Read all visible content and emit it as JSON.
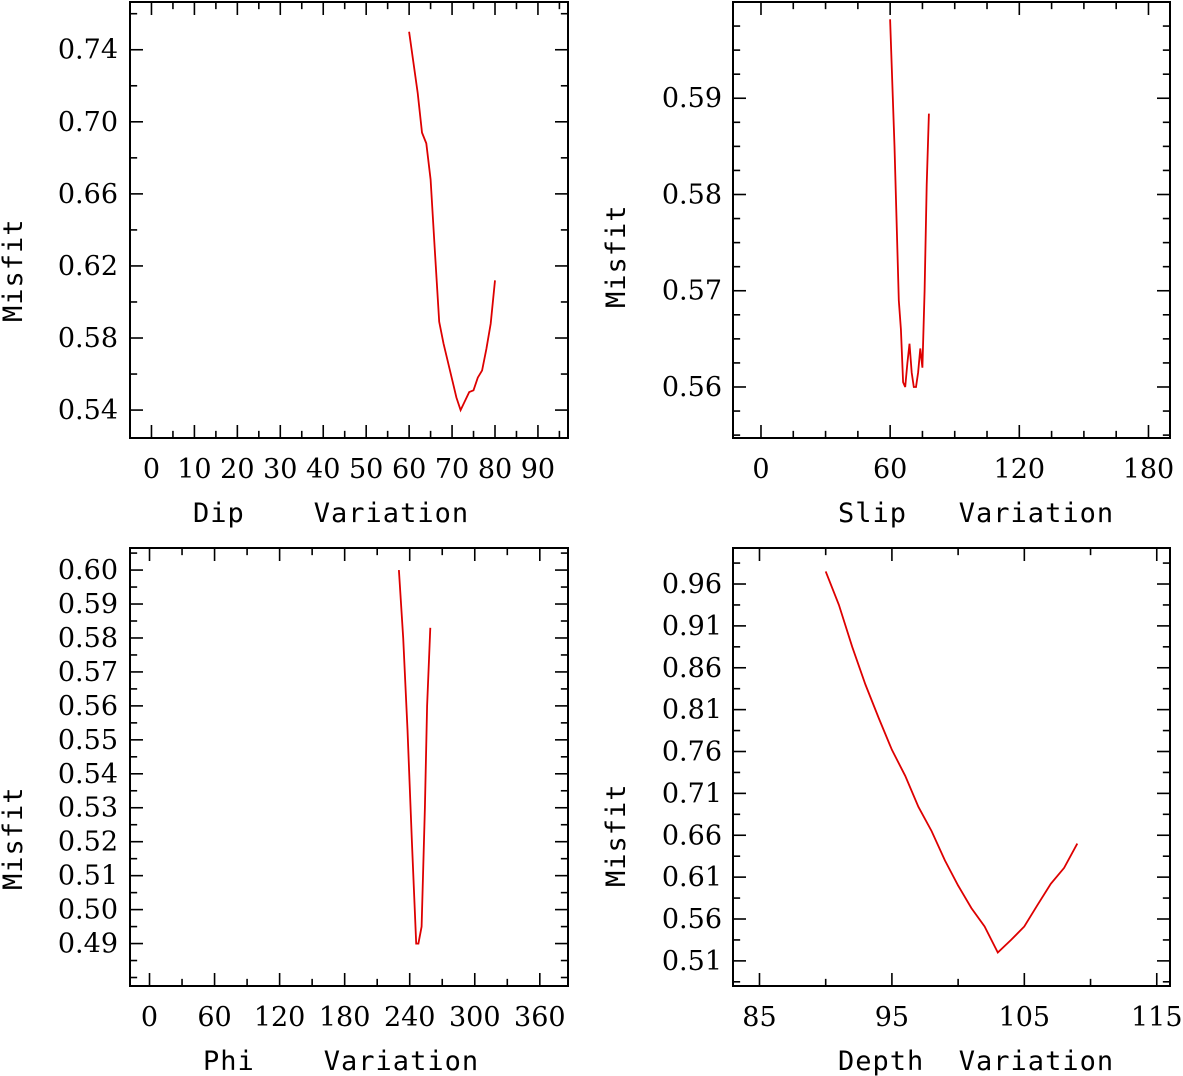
{
  "colors": {
    "line": "#dd0000",
    "axis": "#000000",
    "background": "#ffffff"
  },
  "chart_data": [
    {
      "id": "dip",
      "type": "line",
      "xlabel": "Dip    Variation",
      "ylabel": "Misfit",
      "xlim": [
        -5,
        97
      ],
      "ylim": [
        0.5245,
        0.7665
      ],
      "xticks": [
        0,
        10,
        20,
        30,
        40,
        50,
        60,
        70,
        80,
        90
      ],
      "xtick_labels": [
        "0",
        "10",
        "20",
        "30",
        "40",
        "50",
        "60",
        "70",
        "80",
        "90"
      ],
      "yticks": [
        0.54,
        0.58,
        0.62,
        0.66,
        0.7,
        0.74
      ],
      "ytick_labels": [
        "0.54",
        "0.58",
        "0.62",
        "0.66",
        "0.70",
        "0.74"
      ],
      "series": [
        {
          "name": "misfit",
          "x": [
            60,
            61,
            62,
            63,
            64,
            65,
            66,
            67,
            68,
            69,
            70,
            71,
            72,
            73,
            74,
            75,
            76,
            77,
            78,
            79,
            80
          ],
          "y": [
            0.75,
            0.733,
            0.716,
            0.694,
            0.688,
            0.668,
            0.628,
            0.589,
            0.577,
            0.567,
            0.557,
            0.547,
            0.54,
            0.545,
            0.55,
            0.551,
            0.558,
            0.562,
            0.574,
            0.588,
            0.612
          ]
        }
      ]
    },
    {
      "id": "slip",
      "type": "line",
      "xlabel": "Slip   Variation",
      "ylabel": "Misfit",
      "xlim": [
        -13,
        190
      ],
      "ylim": [
        0.5547,
        0.6
      ],
      "xticks": [
        0,
        60,
        120,
        180
      ],
      "xtick_labels": [
        "0",
        "60",
        "120",
        "180"
      ],
      "yticks": [
        0.56,
        0.57,
        0.58,
        0.59
      ],
      "ytick_labels": [
        "0.56",
        "0.57",
        "0.58",
        "0.59"
      ],
      "series": [
        {
          "name": "misfit",
          "x": [
            60,
            62,
            64,
            65,
            66,
            67,
            68,
            69,
            70,
            71,
            72,
            73,
            74,
            75,
            76,
            77,
            78
          ],
          "y": [
            0.5982,
            0.585,
            0.569,
            0.566,
            0.5605,
            0.56,
            0.5625,
            0.5645,
            0.5615,
            0.56,
            0.56,
            0.5615,
            0.564,
            0.562,
            0.57,
            0.581,
            0.5884
          ]
        }
      ]
    },
    {
      "id": "phi",
      "type": "line",
      "xlabel": "Phi    Variation",
      "ylabel": "Misfit",
      "xlim": [
        -18,
        386
      ],
      "ylim": [
        0.4775,
        0.6065
      ],
      "xticks": [
        0,
        60,
        120,
        180,
        240,
        300,
        360
      ],
      "xtick_labels": [
        "0",
        "60",
        "120",
        "180",
        "240",
        "300",
        "360"
      ],
      "yticks": [
        0.49,
        0.5,
        0.51,
        0.52,
        0.53,
        0.54,
        0.55,
        0.56,
        0.57,
        0.58,
        0.59,
        0.6
      ],
      "ytick_labels": [
        "0.49",
        "0.50",
        "0.51",
        "0.52",
        "0.53",
        "0.54",
        "0.55",
        "0.56",
        "0.57",
        "0.58",
        "0.59",
        "0.60"
      ],
      "series": [
        {
          "name": "misfit",
          "x": [
            230,
            234,
            238,
            242,
            246,
            248,
            251,
            254,
            256,
            259
          ],
          "y": [
            0.6,
            0.58,
            0.553,
            0.52,
            0.49,
            0.49,
            0.495,
            0.53,
            0.56,
            0.583
          ]
        }
      ]
    },
    {
      "id": "depth",
      "type": "line",
      "xlabel": "Depth  Variation",
      "ylabel": "Misfit",
      "xlim": [
        83,
        116
      ],
      "ylim": [
        0.48,
        1.003
      ],
      "xticks": [
        85,
        95,
        105,
        115
      ],
      "xtick_labels": [
        "85",
        "95",
        "105",
        "115"
      ],
      "yticks": [
        0.51,
        0.56,
        0.61,
        0.66,
        0.71,
        0.76,
        0.81,
        0.86,
        0.91,
        0.96
      ],
      "ytick_labels": [
        "0.51",
        "0.56",
        "0.61",
        "0.66",
        "0.71",
        "0.76",
        "0.81",
        "0.86",
        "0.91",
        "0.96"
      ],
      "series": [
        {
          "name": "misfit",
          "x": [
            90,
            91,
            92,
            93,
            94,
            95,
            96,
            97,
            98,
            99,
            100,
            101,
            102,
            103,
            104,
            105,
            106,
            107,
            108,
            109
          ],
          "y": [
            0.975,
            0.935,
            0.885,
            0.84,
            0.8,
            0.762,
            0.731,
            0.694,
            0.665,
            0.63,
            0.6,
            0.573,
            0.551,
            0.52,
            0.535,
            0.551,
            0.577,
            0.602,
            0.621,
            0.65
          ]
        }
      ]
    }
  ]
}
